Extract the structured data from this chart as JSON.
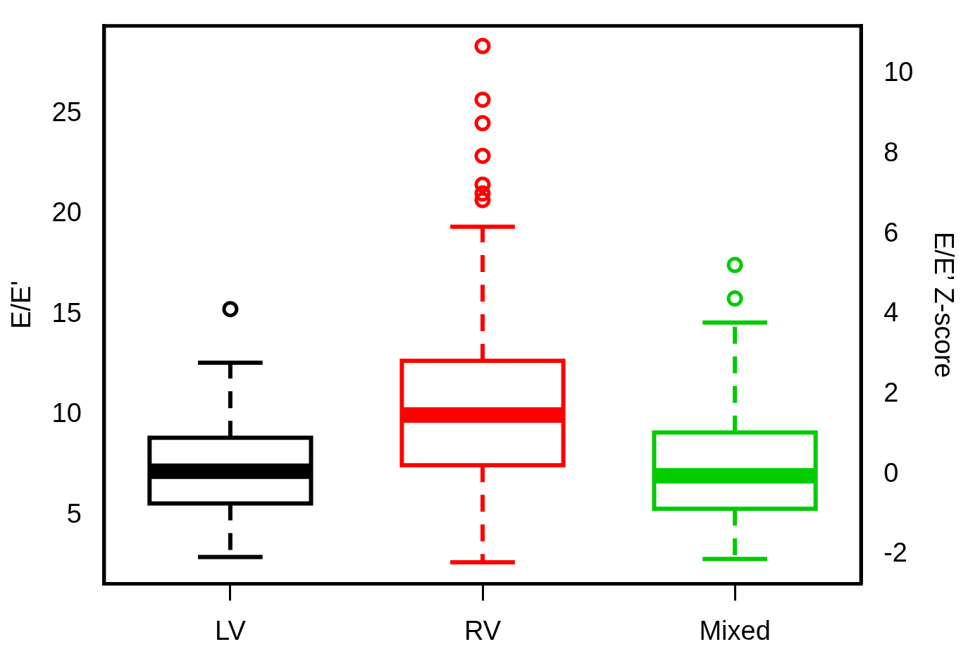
{
  "chart_data": {
    "type": "box",
    "categories": [
      "LV",
      "RV",
      "Mixed"
    ],
    "colors": [
      "#000000",
      "#ff0000",
      "#00cc00"
    ],
    "boxes": [
      {
        "low": 2.93,
        "q1": 5.6,
        "median": 7.2,
        "q3": 8.87,
        "high": 12.6,
        "outliers": [
          15.27
        ]
      },
      {
        "low": 2.67,
        "q1": 7.5,
        "median": 10.0,
        "q3": 12.7,
        "high": 19.37,
        "outliers": [
          28.37,
          25.7,
          24.53,
          22.9,
          21.47,
          21.03,
          20.7
        ]
      },
      {
        "low": 2.83,
        "q1": 5.33,
        "median": 6.97,
        "q3": 9.13,
        "high": 14.6,
        "outliers": [
          17.47,
          15.8
        ]
      }
    ],
    "ylabel": "E/E'",
    "y2label": "E/E’ Z-score",
    "ylim": [
      1.6,
      29.37
    ],
    "yticks": [
      5,
      10,
      15,
      20,
      25
    ],
    "y2lim": [
      -2.73,
      11.2
    ],
    "y2ticks": [
      -2,
      0,
      2,
      4,
      6,
      8,
      10
    ],
    "grid": false,
    "legend": false,
    "marker": "circle"
  }
}
